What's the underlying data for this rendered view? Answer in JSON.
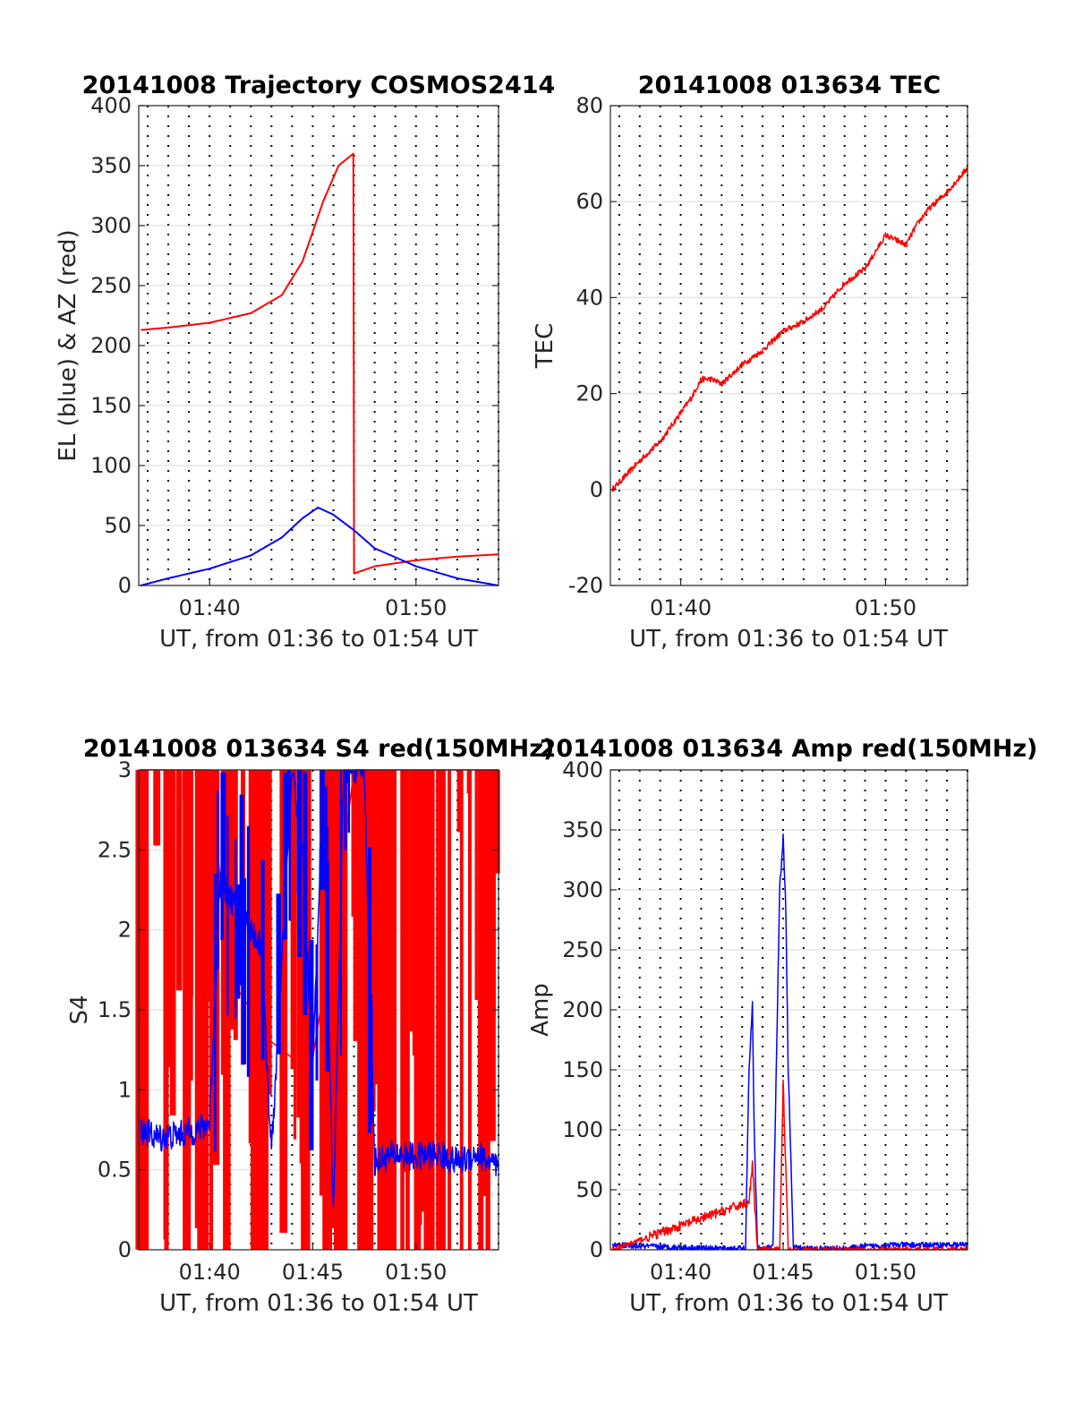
{
  "chart_data": [
    {
      "type": "line",
      "title": "20141008 Trajectory COSMOS2414",
      "xlabel": "UT, from 01:36 to 01:54 UT",
      "ylabel": "EL (blue) & AZ (red)",
      "xlim": [
        "01:36:34",
        "01:54:00"
      ],
      "ylim": [
        0,
        400
      ],
      "yticks": [
        "0",
        "50",
        "100",
        "150",
        "200",
        "250",
        "300",
        "350",
        "400"
      ],
      "xticks": [
        "01:40",
        "01:50"
      ],
      "grid": true,
      "series": [
        {
          "color": "#ff0000",
          "x": [
            "01:36:40",
            "01:38:00",
            "01:40:00",
            "01:42:00",
            "01:43:30",
            "01:44:30",
            "01:45:30",
            "01:46:15",
            "01:46:58",
            "01:46:59",
            "01:47:00",
            "01:48:00",
            "01:50:00",
            "01:52:00",
            "01:54:00"
          ],
          "values": [
            213,
            215,
            219,
            227,
            242,
            270,
            320,
            350,
            360,
            200,
            10,
            16,
            21,
            24,
            26
          ]
        },
        {
          "color": "#0000ff",
          "x": [
            "01:36:40",
            "01:38:00",
            "01:40:00",
            "01:42:00",
            "01:43:30",
            "01:44:30",
            "01:45:15",
            "01:46:00",
            "01:47:00",
            "01:48:00",
            "01:50:00",
            "01:52:00",
            "01:54:00"
          ],
          "values": [
            0,
            6,
            14,
            25,
            40,
            56,
            65,
            59,
            46,
            31,
            16,
            6,
            0
          ]
        }
      ]
    },
    {
      "type": "line",
      "title": "20141008 013634 TEC",
      "xlabel": "UT, from 01:36 to 01:54 UT",
      "ylabel": "TEC",
      "xlim": [
        "01:36:34",
        "01:54:00"
      ],
      "ylim": [
        -20,
        80
      ],
      "yticks": [
        "-20",
        "0",
        "20",
        "40",
        "60",
        "80"
      ],
      "xticks": [
        "01:40",
        "01:50"
      ],
      "grid": true,
      "series": [
        {
          "color": "#ff0000",
          "x": [
            "01:36:40",
            "01:38:00",
            "01:39:00",
            "01:40:00",
            "01:40:30",
            "01:41:00",
            "01:41:30",
            "01:42:00",
            "01:43:00",
            "01:44:00",
            "01:45:00",
            "01:46:00",
            "01:47:00",
            "01:48:00",
            "01:49:00",
            "01:50:00",
            "01:51:00",
            "01:51:30",
            "01:52:00",
            "01:53:00",
            "01:54:00"
          ],
          "values": [
            0,
            6,
            10,
            16,
            19,
            23,
            23,
            22,
            26,
            29,
            33,
            35,
            38,
            43,
            46,
            53,
            51,
            55,
            58,
            62,
            67
          ]
        }
      ]
    },
    {
      "type": "line",
      "title": "20141008 013634 S4 red(150MHz)",
      "xlabel": "UT, from 01:36 to 01:54 UT",
      "ylabel": "S4",
      "xlim": [
        "01:36:34",
        "01:54:00"
      ],
      "ylim": [
        0,
        3
      ],
      "yticks": [
        "0",
        "0.5",
        "1",
        "1.5",
        "2",
        "2.5",
        "3"
      ],
      "xticks": [
        "01:40",
        "01:45",
        "01:50"
      ],
      "grid": true,
      "series": [
        {
          "color": "#ff0000",
          "x": [
            "01:36:40",
            "01:40:00",
            "01:41:00",
            "01:42:00",
            "01:43:00",
            "01:44:00",
            "01:45:00",
            "01:46:00",
            "01:47:00",
            "01:48:00",
            "01:50:00",
            "01:52:00",
            "01:54:00"
          ],
          "values": [
            3,
            3,
            1.7,
            1.5,
            1.3,
            1.2,
            1.2,
            2,
            3,
            3,
            3,
            3,
            3
          ]
        },
        {
          "color": "#0000ff",
          "x": [
            "01:36:40",
            "01:37:30",
            "01:38:30",
            "01:39:30",
            "01:40:00",
            "01:40:30",
            "01:41:30",
            "01:42:30",
            "01:43:00",
            "01:43:30",
            "01:44:00",
            "01:44:30",
            "01:45:00",
            "01:45:30",
            "01:46:00",
            "01:46:30",
            "01:47:00",
            "01:47:30",
            "01:48:00",
            "01:49:00",
            "01:50:00",
            "01:51:00",
            "01:52:00",
            "01:53:00",
            "01:54:00"
          ],
          "values": [
            0.75,
            0.7,
            0.72,
            0.75,
            0.8,
            2.3,
            2.1,
            1.9,
            0.6,
            1.8,
            3,
            2.5,
            1.1,
            3,
            0.2,
            3,
            3,
            3,
            0.55,
            0.6,
            0.58,
            0.6,
            0.55,
            0.6,
            0.5
          ]
        }
      ]
    },
    {
      "type": "line",
      "title": "20141008 013634 Amp red(150MHz)",
      "xlabel": "UT, from 01:36 to 01:54 UT",
      "ylabel": "Amp",
      "xlim": [
        "01:36:34",
        "01:54:00"
      ],
      "ylim": [
        0,
        400
      ],
      "yticks": [
        "0",
        "50",
        "100",
        "150",
        "200",
        "250",
        "300",
        "350",
        "400"
      ],
      "xticks": [
        "01:40",
        "01:45",
        "01:50"
      ],
      "grid": true,
      "series": [
        {
          "color": "#0000ff",
          "x": [
            "01:36:40",
            "01:38:00",
            "01:40:00",
            "01:42:00",
            "01:43:10",
            "01:43:20",
            "01:43:30",
            "01:43:35",
            "01:43:45",
            "01:44:00",
            "01:44:30",
            "01:44:50",
            "01:45:00",
            "01:45:08",
            "01:45:15",
            "01:45:30",
            "01:46:00",
            "01:48:00",
            "01:50:00",
            "01:52:00",
            "01:54:00"
          ],
          "values": [
            4,
            3,
            2,
            1,
            1,
            150,
            205,
            100,
            2,
            1,
            2,
            300,
            345,
            280,
            150,
            2,
            1,
            1,
            4,
            4,
            4
          ]
        },
        {
          "color": "#ff0000",
          "x": [
            "01:36:40",
            "01:43:20",
            "01:43:30",
            "01:43:45",
            "01:44:50",
            "01:45:00",
            "01:45:15",
            "01:54:00"
          ],
          "values": [
            0,
            40,
            70,
            0,
            0,
            140,
            0,
            0
          ]
        }
      ]
    }
  ]
}
